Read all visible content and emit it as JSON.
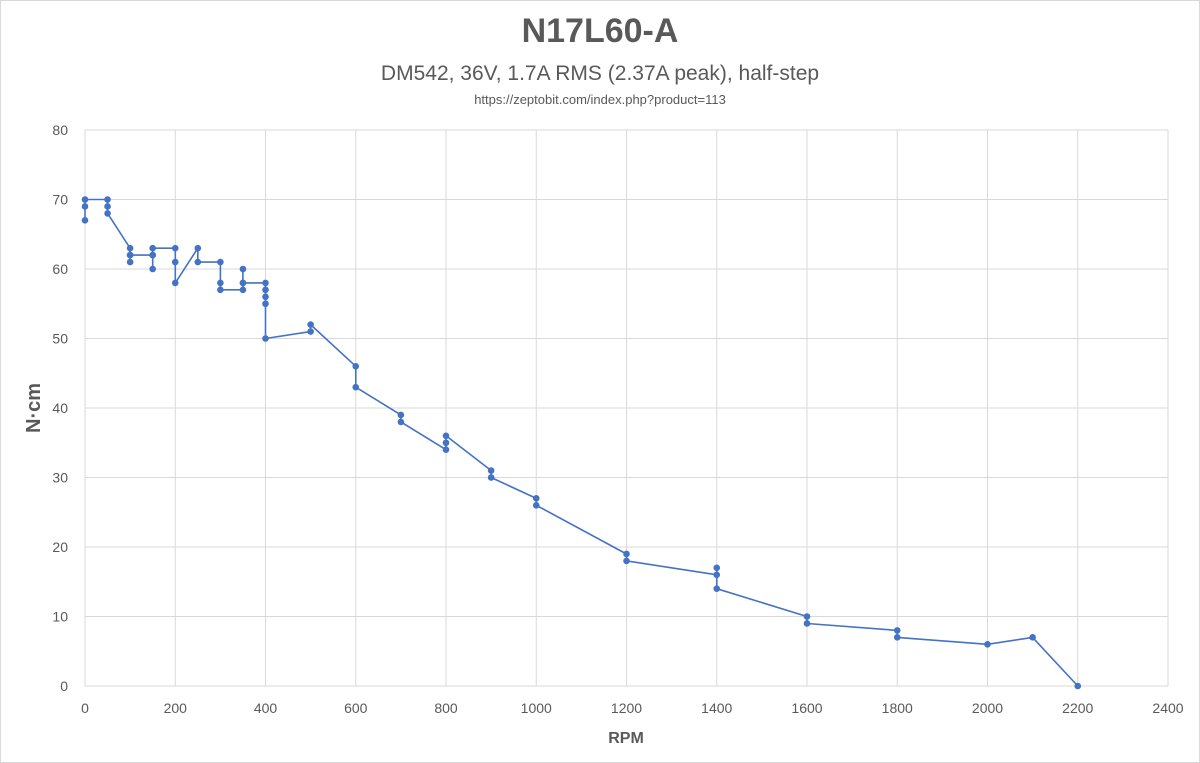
{
  "chart_data": {
    "type": "scatter",
    "title": "N17L60-A",
    "subtitle": "DM542, 36V, 1.7A RMS (2.37A peak), half-step",
    "source": "https://zeptobit.com/index.php?product=113",
    "xlabel": "RPM",
    "ylabel": "N·cm",
    "xlim": [
      0,
      2400
    ],
    "ylim": [
      0,
      80
    ],
    "xticks": [
      0,
      200,
      400,
      600,
      800,
      1000,
      1200,
      1400,
      1600,
      1800,
      2000,
      2200,
      2400
    ],
    "yticks": [
      0,
      10,
      20,
      30,
      40,
      50,
      60,
      70,
      80
    ],
    "grid": true,
    "series": [
      {
        "name": "N17L60-A",
        "color": "#4472c4",
        "points": [
          [
            0,
            67
          ],
          [
            0,
            69
          ],
          [
            0,
            70
          ],
          [
            50,
            70
          ],
          [
            50,
            69
          ],
          [
            50,
            68
          ],
          [
            100,
            63
          ],
          [
            100,
            62
          ],
          [
            100,
            61
          ],
          [
            100,
            62
          ],
          [
            150,
            62
          ],
          [
            150,
            60
          ],
          [
            150,
            62
          ],
          [
            150,
            63
          ],
          [
            200,
            63
          ],
          [
            200,
            61
          ],
          [
            200,
            58
          ],
          [
            250,
            63
          ],
          [
            250,
            61
          ],
          [
            300,
            61
          ],
          [
            300,
            58
          ],
          [
            300,
            57
          ],
          [
            350,
            57
          ],
          [
            350,
            58
          ],
          [
            350,
            60
          ],
          [
            350,
            58
          ],
          [
            400,
            58
          ],
          [
            400,
            57
          ],
          [
            400,
            56
          ],
          [
            400,
            55
          ],
          [
            400,
            50
          ],
          [
            500,
            51
          ],
          [
            500,
            52
          ],
          [
            600,
            46
          ],
          [
            600,
            43
          ],
          [
            700,
            39
          ],
          [
            700,
            38
          ],
          [
            800,
            34
          ],
          [
            800,
            35
          ],
          [
            800,
            36
          ],
          [
            900,
            31
          ],
          [
            900,
            30
          ],
          [
            1000,
            27
          ],
          [
            1000,
            26
          ],
          [
            1200,
            19
          ],
          [
            1200,
            18
          ],
          [
            1400,
            16
          ],
          [
            1400,
            17
          ],
          [
            1400,
            14
          ],
          [
            1600,
            10
          ],
          [
            1600,
            9
          ],
          [
            1800,
            8
          ],
          [
            1800,
            7
          ],
          [
            2000,
            6
          ],
          [
            2100,
            7
          ],
          [
            2200,
            0
          ]
        ]
      }
    ]
  }
}
